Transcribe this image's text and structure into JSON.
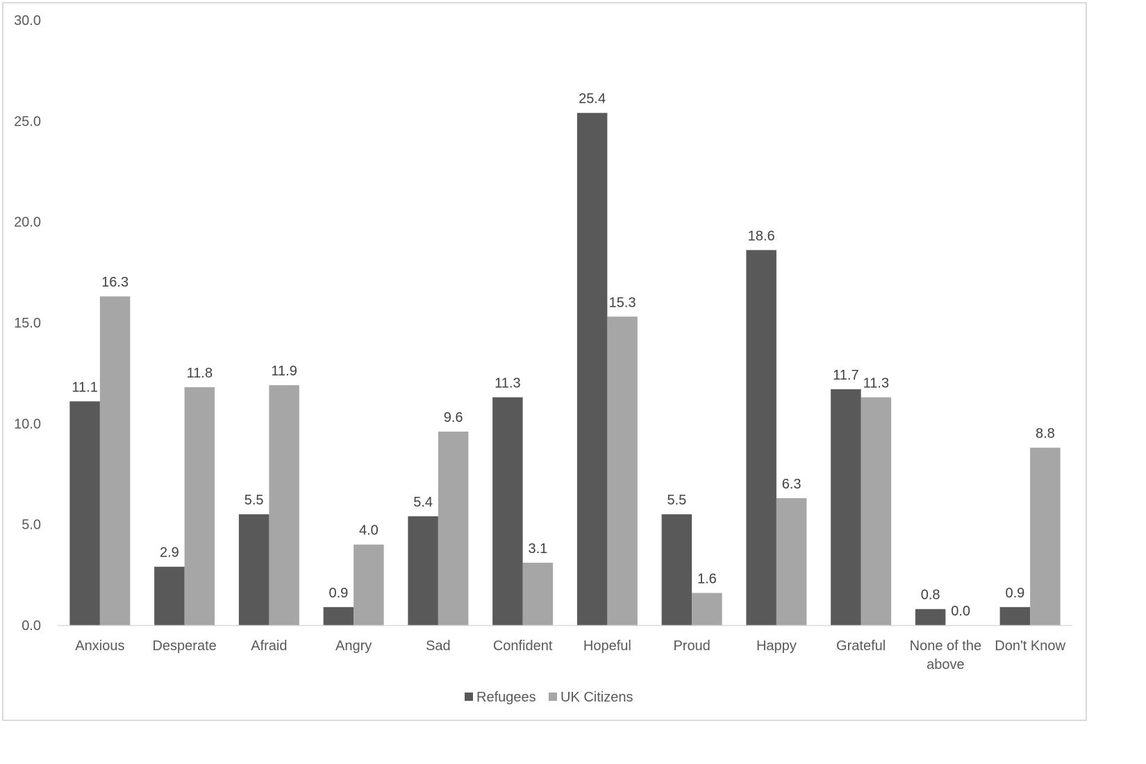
{
  "chart_data": {
    "type": "bar",
    "title": "",
    "xlabel": "",
    "ylabel": "",
    "ylim": [
      0,
      30
    ],
    "yticks": [
      "0.0",
      "5.0",
      "10.0",
      "15.0",
      "20.0",
      "25.0",
      "30.0"
    ],
    "grid": false,
    "legend_position": "bottom",
    "categories": [
      [
        "Anxious"
      ],
      [
        "Desperate"
      ],
      [
        "Afraid"
      ],
      [
        "Angry"
      ],
      [
        "Sad"
      ],
      [
        "Confident"
      ],
      [
        "Hopeful"
      ],
      [
        "Proud"
      ],
      [
        "Happy"
      ],
      [
        "Grateful"
      ],
      [
        "None of the",
        "above"
      ],
      [
        "Don't Know"
      ]
    ],
    "series": [
      {
        "name": "Refugees",
        "color": "#595959",
        "values": [
          11.1,
          2.9,
          5.5,
          0.9,
          5.4,
          11.3,
          25.4,
          5.5,
          18.6,
          11.7,
          0.8,
          0.9
        ],
        "labels": [
          "11.1",
          "2.9",
          "5.5",
          "0.9",
          "5.4",
          "11.3",
          "25.4",
          "5.5",
          "18.6",
          "11.7",
          "0.8",
          "0.9"
        ]
      },
      {
        "name": "UK Citizens",
        "color": "#a6a6a6",
        "values": [
          16.3,
          11.8,
          11.9,
          4.0,
          9.6,
          3.1,
          15.3,
          1.6,
          6.3,
          11.3,
          0.0,
          8.8
        ],
        "labels": [
          "16.3",
          "11.8",
          "11.9",
          "4.0",
          "9.6",
          "3.1",
          "15.3",
          "1.6",
          "6.3",
          "11.3",
          "0.0",
          "8.8"
        ]
      }
    ]
  }
}
